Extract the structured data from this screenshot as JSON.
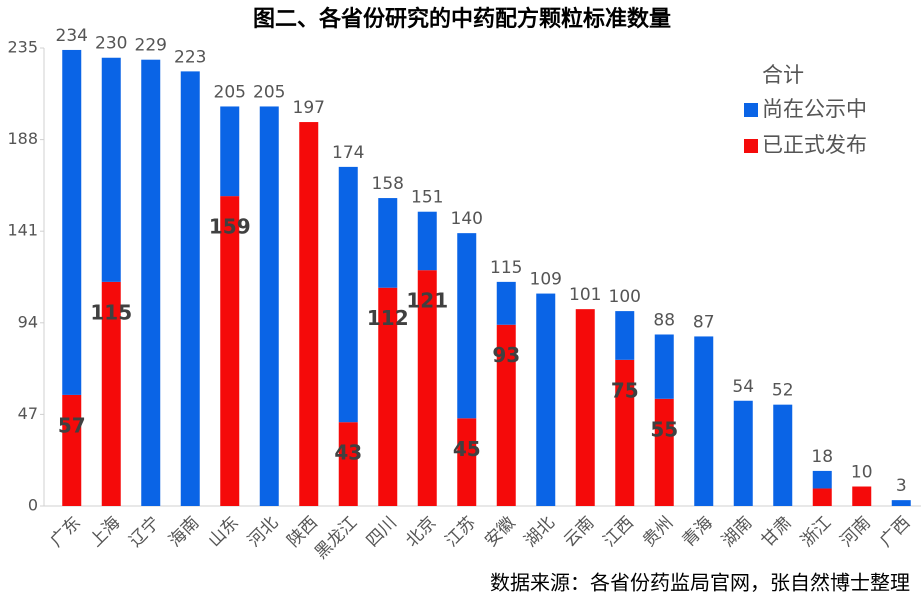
{
  "chart_data": {
    "type": "stacked_bar",
    "title": "图二、各省份研究的中药配方颗粒标准数量",
    "source": "数据来源：各省份药监局官网，张自然博士整理",
    "legend_title": "合计",
    "categories": [
      "广东",
      "上海",
      "辽宁",
      "海南",
      "山东",
      "河北",
      "陕西",
      "黑龙江",
      "四川",
      "北京",
      "江苏",
      "安徽",
      "湖北",
      "云南",
      "江西",
      "贵州",
      "青海",
      "湖南",
      "甘肃",
      "浙江",
      "河南",
      "广西"
    ],
    "series": [
      {
        "name": "尚在公示中",
        "color": "#0a64e6",
        "values": [
          177,
          115,
          229,
          223,
          46,
          205,
          0,
          131,
          46,
          30,
          95,
          22,
          109,
          0,
          25,
          33,
          87,
          54,
          52,
          9,
          0,
          3
        ]
      },
      {
        "name": "已正式发布",
        "color": "#f50a0a",
        "values": [
          57,
          115,
          0,
          0,
          159,
          0,
          197,
          43,
          112,
          121,
          45,
          93,
          0,
          101,
          75,
          55,
          0,
          0,
          0,
          9,
          10,
          0
        ],
        "value_labels": [
          "57",
          "115",
          null,
          null,
          "159",
          null,
          null,
          "43",
          "112",
          "121",
          "45",
          "93",
          null,
          null,
          "75",
          "55",
          null,
          null,
          null,
          null,
          null,
          null
        ]
      }
    ],
    "total_labels": [
      234,
      230,
      229,
      223,
      205,
      205,
      197,
      174,
      158,
      151,
      140,
      115,
      109,
      101,
      100,
      88,
      87,
      54,
      52,
      18,
      10,
      3
    ],
    "ylim": [
      0,
      235
    ],
    "yticks": [
      0,
      47,
      94,
      141,
      188,
      235
    ],
    "grid": false
  }
}
